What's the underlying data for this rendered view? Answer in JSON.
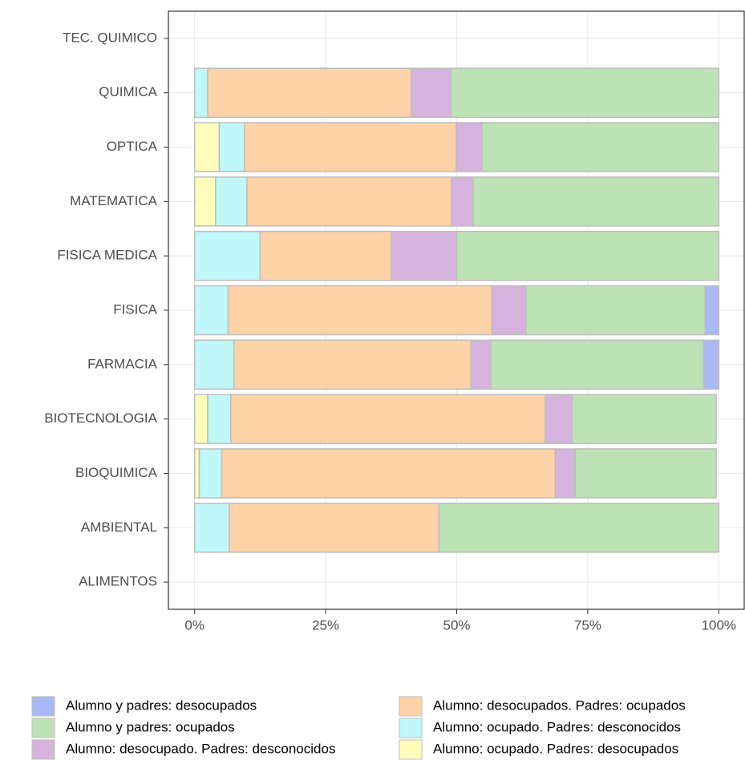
{
  "chart_data": {
    "type": "stacked-barh",
    "categories": [
      "ALIMENTOS",
      "AMBIENTAL",
      "BIOQUIMICA",
      "BIOTECNOLOGIA",
      "FARMACIA",
      "FISICA",
      "FISICA MEDICA",
      "MATEMATICA",
      "OPTICA",
      "QUIMICA",
      "TEC. QUIMICO"
    ],
    "series": [
      {
        "name": "Alumno y padres: desocupados",
        "color": "#aab8f5",
        "values": [
          null,
          null,
          null,
          null,
          2.9,
          2.6,
          null,
          null,
          null,
          null,
          null
        ]
      },
      {
        "name": "Alumno y padres: ocupados",
        "color": "#bde2b5",
        "values": [
          null,
          53.4,
          26.9,
          27.5,
          40.6,
          34.2,
          50,
          46.9,
          45.2,
          51.1,
          null
        ]
      },
      {
        "name": "Alumno: desocupado. Padres: desconocidos",
        "color": "#d6b3dc",
        "values": [
          null,
          null,
          3.8,
          5.1,
          3.8,
          6.5,
          12.5,
          4.1,
          4.9,
          7.6,
          null
        ]
      },
      {
        "name": "Alumno: desocupados. Padres: ocupados",
        "color": "#fdd2a7",
        "values": [
          null,
          40.0,
          63.6,
          60.0,
          45.2,
          50.3,
          25,
          39.0,
          40.4,
          38.8,
          null
        ]
      },
      {
        "name": "Alumno: ocupado. Padres: desconocidos",
        "color": "#c0f7f8",
        "values": [
          null,
          6.6,
          4.3,
          4.4,
          7.5,
          6.4,
          12.5,
          6.0,
          4.8,
          2.5,
          null
        ]
      },
      {
        "name": "Alumno: ocupado. Padres: desocupados",
        "color": "#fffcbc",
        "values": [
          null,
          null,
          0.9,
          2.5,
          null,
          null,
          null,
          4.0,
          4.7,
          null,
          null
        ]
      }
    ],
    "xlim": [
      -5,
      105
    ],
    "xticks": [
      {
        "value": 0,
        "label": "0%"
      },
      {
        "value": 25,
        "label": "25%"
      },
      {
        "value": 50,
        "label": "50%"
      },
      {
        "value": 75,
        "label": "75%"
      },
      {
        "value": 100,
        "label": "100%"
      }
    ],
    "grid": true
  }
}
